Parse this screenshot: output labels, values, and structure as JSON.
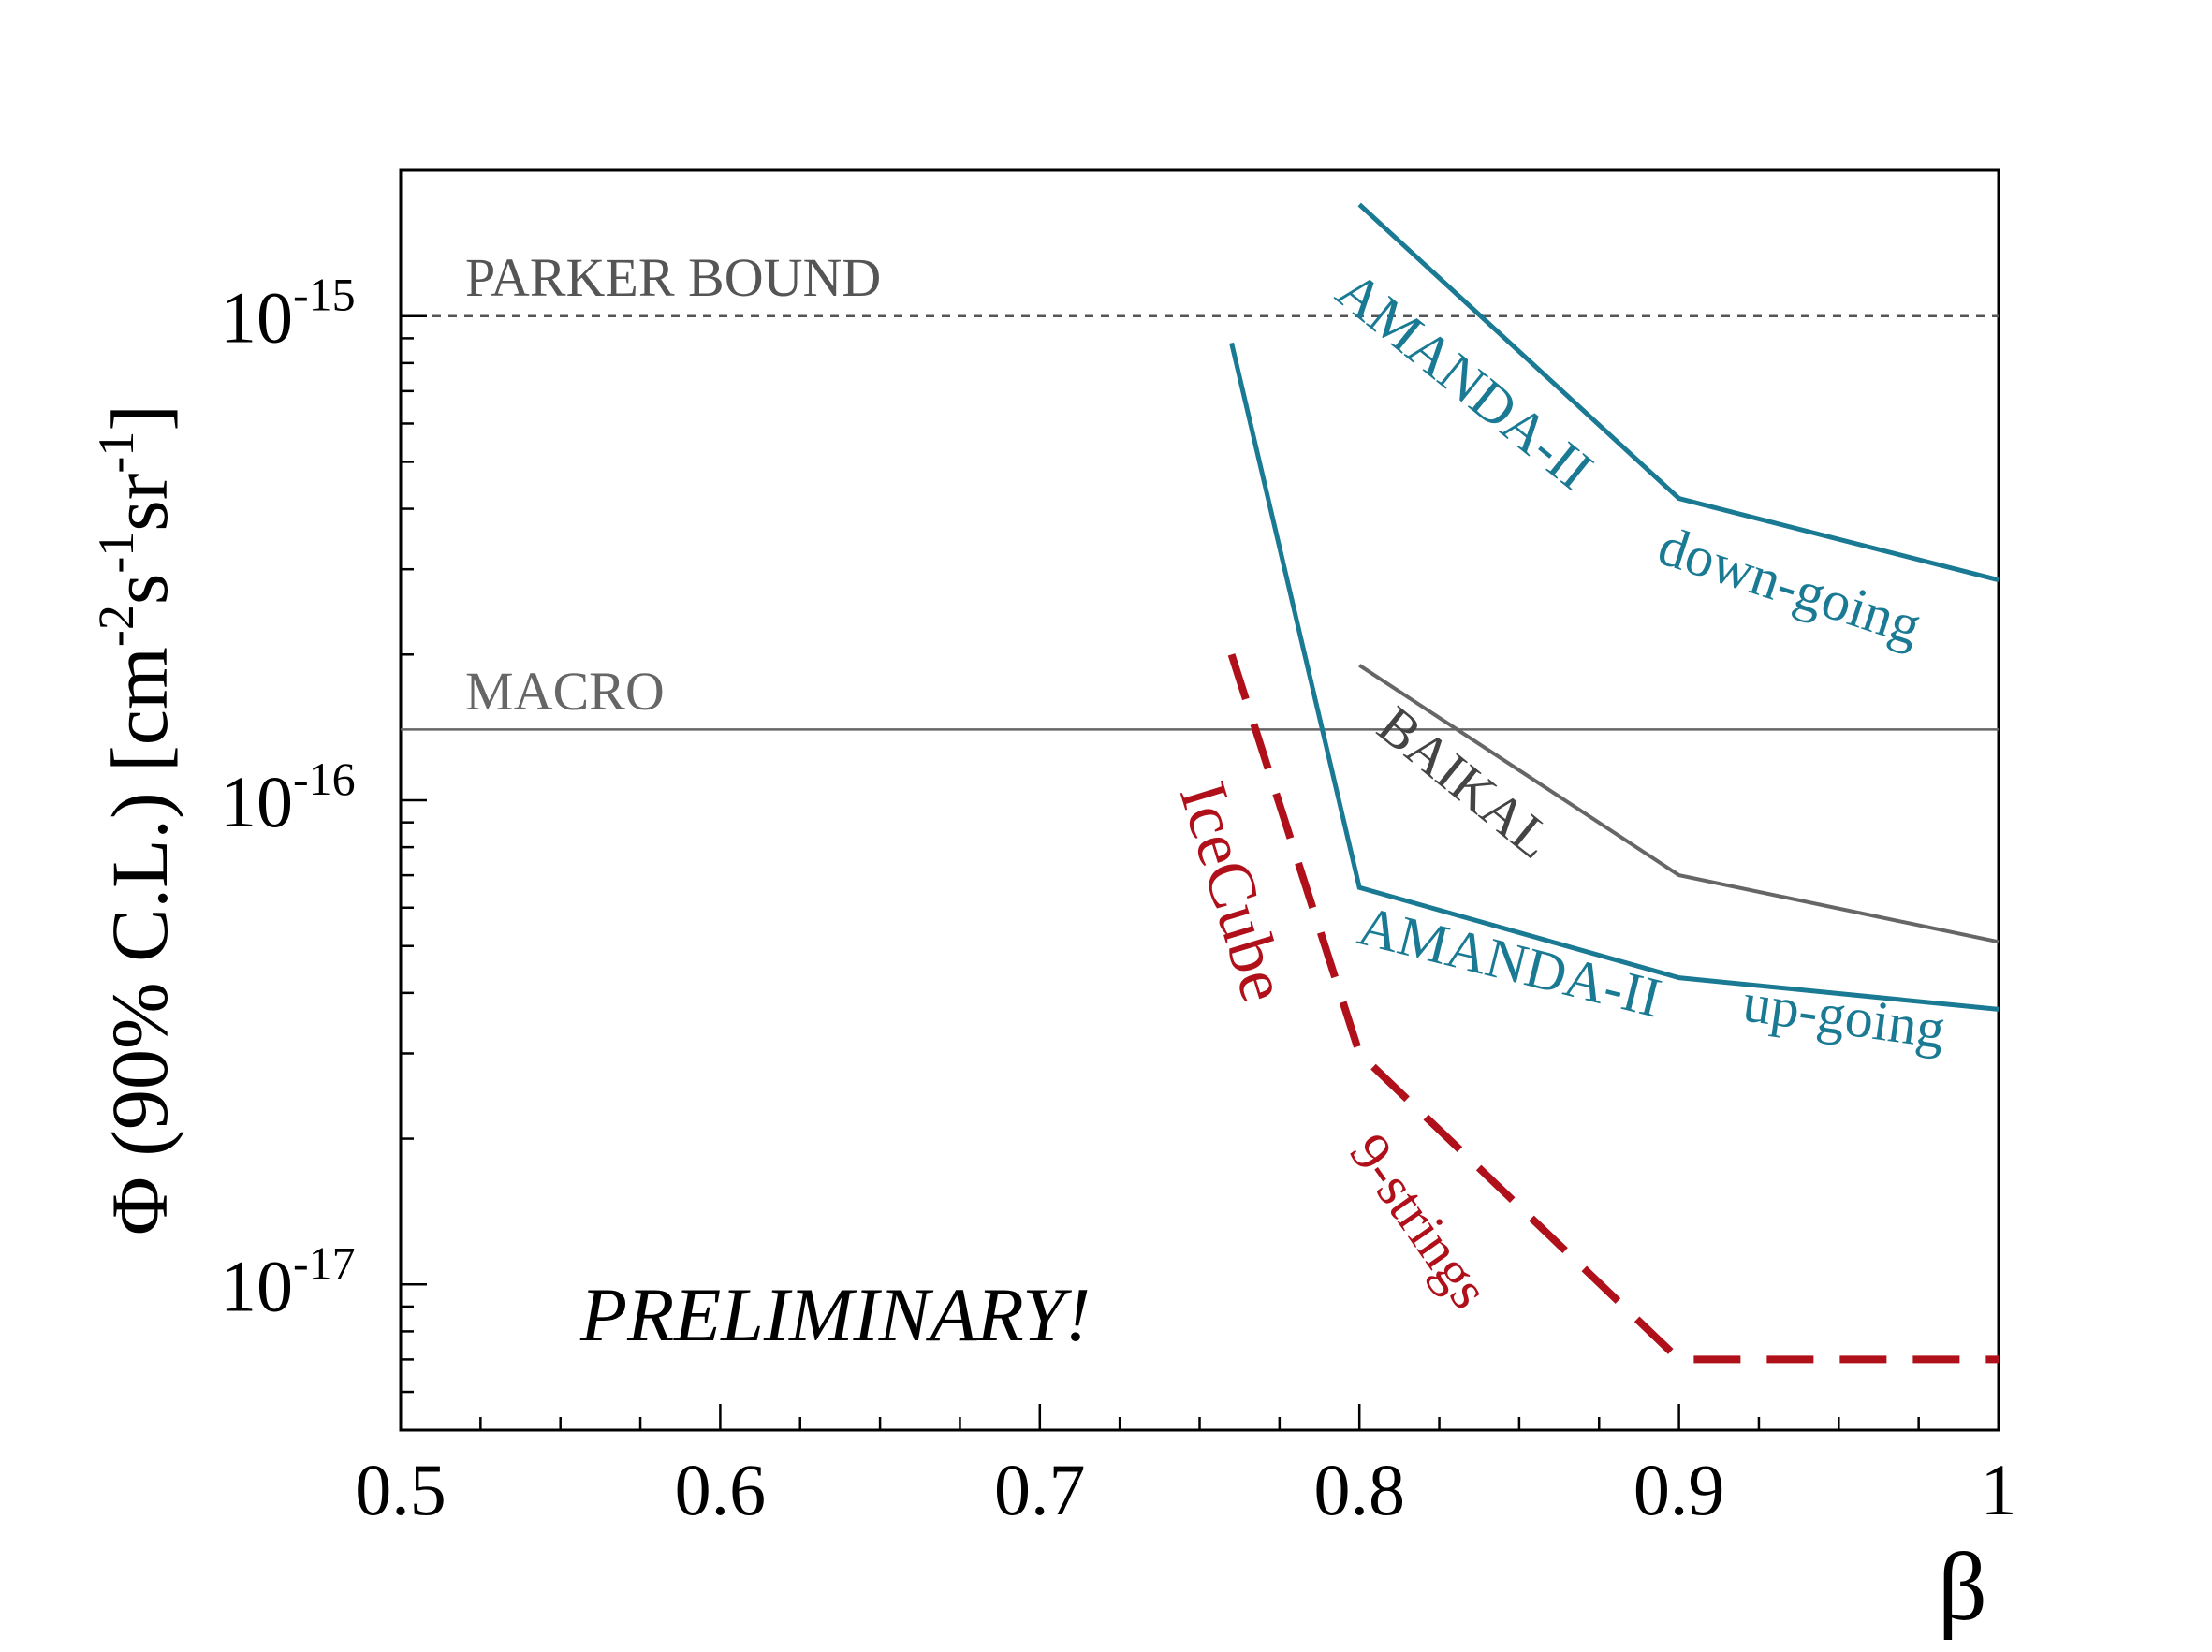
{
  "chart_data": {
    "type": "line",
    "xlabel": "β",
    "ylabel_prefix": "Φ (90% C.L.) [cm",
    "ylabel_sup1": "-2",
    "ylabel_mid1": "s",
    "ylabel_sup2": "-1",
    "ylabel_mid2": "sr",
    "ylabel_sup3": "-1",
    "ylabel_suffix": "]",
    "xlim": [
      0.5,
      1.0
    ],
    "ylim": [
      5e-18,
      2e-15
    ],
    "yscale": "log",
    "x_ticks": [
      {
        "value": 0.5,
        "label": "0.5"
      },
      {
        "value": 0.6,
        "label": "0.6"
      },
      {
        "value": 0.7,
        "label": "0.7"
      },
      {
        "value": 0.8,
        "label": "0.8"
      },
      {
        "value": 0.9,
        "label": "0.9"
      },
      {
        "value": 1.0,
        "label": "1"
      }
    ],
    "y_ticks": [
      {
        "value": 1e-17,
        "base": "10",
        "exp": "-17"
      },
      {
        "value": 1e-16,
        "base": "10",
        "exp": "-16"
      },
      {
        "value": 1e-15,
        "base": "10",
        "exp": "-15"
      }
    ],
    "reference_lines": [
      {
        "name": "PARKER BOUND",
        "label": "PARKER BOUND",
        "y": 1e-15,
        "style": "dashed",
        "color": "#555555"
      },
      {
        "name": "MACRO",
        "label": "MACRO",
        "y": 1.4e-16,
        "style": "solid",
        "color": "#666666"
      }
    ],
    "series": [
      {
        "name": "AMANDA-II down-going",
        "label_part1": "AMANDA-II",
        "label_part2": "down-going",
        "color": "#1a7a94",
        "style": "solid",
        "x": [
          0.8,
          0.9,
          1.0
        ],
        "y": [
          1.7e-15,
          4.2e-16,
          2.85e-16
        ]
      },
      {
        "name": "BAIKAL",
        "label": "BAIKAL",
        "color": "#666666",
        "style": "solid",
        "x": [
          0.8,
          0.9,
          1.0
        ],
        "y": [
          1.9e-16,
          7e-17,
          5.1e-17
        ]
      },
      {
        "name": "AMANDA-II up-going",
        "label_part1": "AMANDA-II",
        "label_part2": "up-going",
        "color": "#1a7a94",
        "style": "solid",
        "x": [
          0.76,
          0.8,
          0.9,
          1.0
        ],
        "y": [
          8.8e-16,
          6.6e-17,
          4.3e-17,
          3.7e-17
        ]
      },
      {
        "name": "IceCube 9-strings",
        "label_part1": "IceCube",
        "label_part2": "9-strings",
        "color": "#b0101a",
        "style": "dashed",
        "x": [
          0.76,
          0.8,
          0.9,
          1.0
        ],
        "y": [
          2e-16,
          3e-17,
          7e-18,
          7e-18
        ]
      }
    ],
    "annotation": "PRELIMINARY!"
  }
}
